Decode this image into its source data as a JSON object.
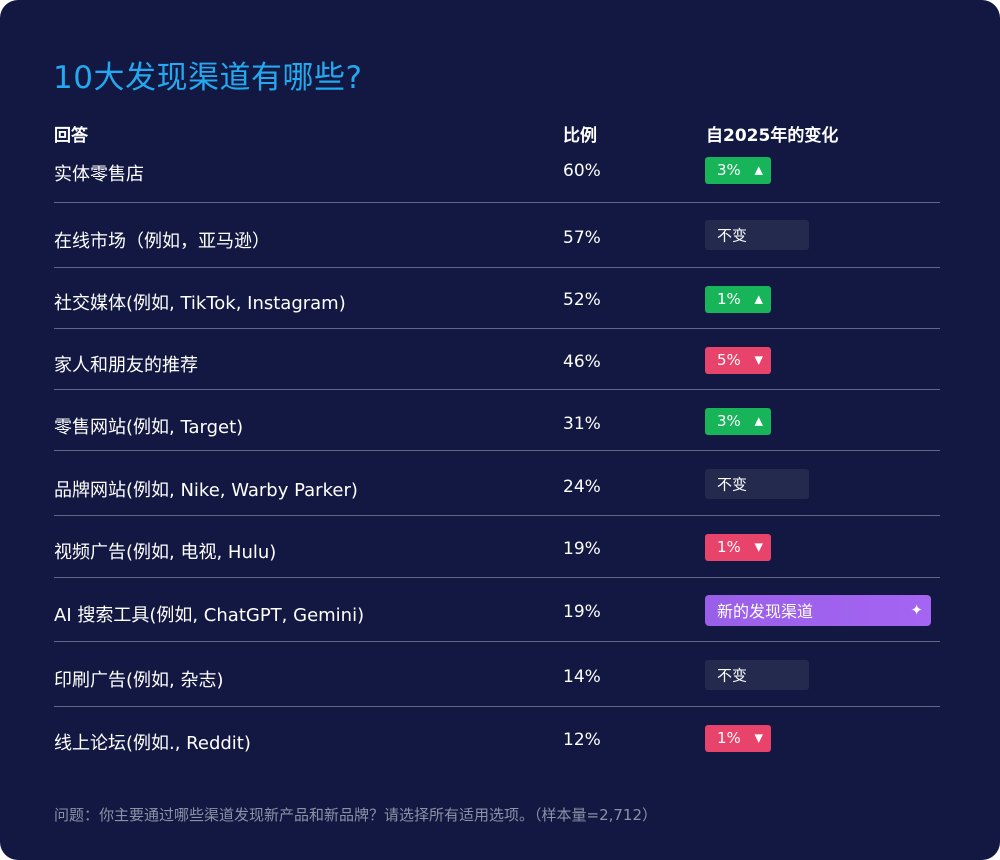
{
  "title": "10大发现渠道有哪些?",
  "columns": {
    "answer": "回答",
    "percent": "比例",
    "change": "自2025年的变化"
  },
  "footnote": "问题：你主要通过哪些渠道发现新产品和新品牌？请选择所有适用选项。（样本量=2,712）",
  "colors": {
    "background": "#121841",
    "title": "#22a9ef",
    "up": "#17b45a",
    "down": "#e8436a",
    "flat": "#232a4e",
    "new": "#9a5fe8"
  },
  "icons": {
    "up": "triangle-up-icon",
    "down": "triangle-down-icon",
    "new": "sparkle-icon"
  },
  "chart_data": {
    "type": "table",
    "rows": [
      {
        "answer": "实体零售店",
        "percent": 60,
        "percent_label": "60%",
        "change_type": "up",
        "change_label": "3%"
      },
      {
        "answer": "在线市场（例如，亚马逊）",
        "percent": 57,
        "percent_label": "57%",
        "change_type": "flat",
        "change_label": "不变"
      },
      {
        "answer": "社交媒体(例如, TikTok, Instagram)",
        "percent": 52,
        "percent_label": "52%",
        "change_type": "up",
        "change_label": "1%"
      },
      {
        "answer": "家人和朋友的推荐",
        "percent": 46,
        "percent_label": "46%",
        "change_type": "down",
        "change_label": "5%"
      },
      {
        "answer": "零售网站(例如, Target)",
        "percent": 31,
        "percent_label": "31%",
        "change_type": "up",
        "change_label": "3%"
      },
      {
        "answer": "品牌网站(例如, Nike, Warby Parker)",
        "percent": 24,
        "percent_label": "24%",
        "change_type": "flat",
        "change_label": "不变"
      },
      {
        "answer": "视频广告(例如, 电视, Hulu)",
        "percent": 19,
        "percent_label": "19%",
        "change_type": "down",
        "change_label": "1%"
      },
      {
        "answer": "AI 搜索工具(例如, ChatGPT, Gemini)",
        "percent": 19,
        "percent_label": "19%",
        "change_type": "new",
        "change_label": "新的发现渠道"
      },
      {
        "answer": "印刷广告(例如, 杂志)",
        "percent": 14,
        "percent_label": "14%",
        "change_type": "flat",
        "change_label": "不变"
      },
      {
        "answer": "线上论坛(例如., Reddit)",
        "percent": 12,
        "percent_label": "12%",
        "change_type": "down",
        "change_label": "1%"
      }
    ]
  }
}
